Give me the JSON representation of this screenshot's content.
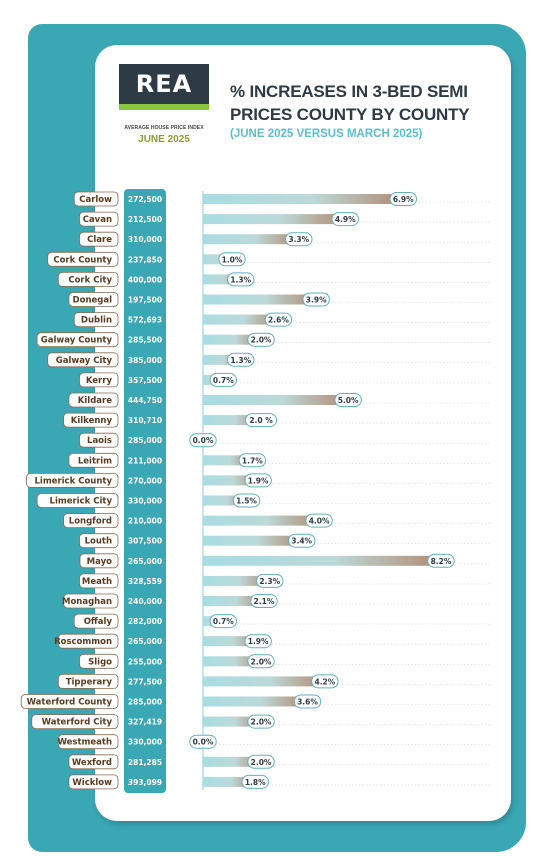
{
  "logo": {
    "brand": "REA",
    "subtitle": "AVERAGE HOUSE PRICE INDEX",
    "date": "JUNE 2025"
  },
  "header": {
    "title_line1": "% INCREASES IN 3-BED SEMI",
    "title_line2": "PRICES COUNTY BY COUNTY",
    "subtitle": "(JUNE 2025 VERSUS MARCH 2025)"
  },
  "colors": {
    "accent_teal": "#3aa7b5",
    "bar_start": "#a8dde3",
    "bar_end": "#b38b72",
    "dark": "#2e3b44",
    "logo_green": "#8cc63f",
    "label_brown": "#5a3b1f"
  },
  "chart_data": {
    "type": "bar",
    "orientation": "horizontal",
    "title": "% INCREASES IN 3-BED SEMI PRICES COUNTY BY COUNTY",
    "subtitle": "(JUNE 2025 VERSUS MARCH 2025)",
    "categories": [
      "Carlow",
      "Cavan",
      "Clare",
      "Cork County",
      "Cork City",
      "Donegal",
      "Dublin",
      "Galway County",
      "Galway City",
      "Kerry",
      "Kildare",
      "Kilkenny",
      "Laois",
      "Leitrim",
      "Limerick County",
      "Limerick City",
      "Longford",
      "Louth",
      "Mayo",
      "Meath",
      "Monaghan",
      "Offaly",
      "Roscommon",
      "Sligo",
      "Tipperary",
      "Waterford County",
      "Waterford City",
      "Westmeath",
      "Wexford",
      "Wicklow"
    ],
    "prices": [
      "272,500",
      "212,500",
      "310,000",
      "237,850",
      "400,000",
      "197,500",
      "572,693",
      "285,500",
      "385,000",
      "357,500",
      "444,750",
      "310,710",
      "285,000",
      "211,000",
      "270,000",
      "330,000",
      "210,000",
      "307,500",
      "265,000",
      "328,559",
      "240,000",
      "282,000",
      "265,000",
      "255,000",
      "277,500",
      "285,000",
      "327,419",
      "330,000",
      "281,285",
      "393,099"
    ],
    "values": [
      6.9,
      4.9,
      3.3,
      1.0,
      1.3,
      3.9,
      2.6,
      2.0,
      1.3,
      0.7,
      5.0,
      2.0,
      0.0,
      1.7,
      1.9,
      1.5,
      4.0,
      3.4,
      8.2,
      2.3,
      2.1,
      0.7,
      1.9,
      2.0,
      4.2,
      3.6,
      2.0,
      0.0,
      2.0,
      1.8
    ],
    "value_labels": [
      "6.9%",
      "4.9%",
      "3.3%",
      "1.0%",
      "1.3%",
      "3.9%",
      "2.6%",
      "2.0%",
      "1.3%",
      "0.7%",
      "5.0%",
      "2.0 %",
      "0.0%",
      "1.7%",
      "1.9%",
      "1.5%",
      "4.0%",
      "3.4%",
      "8.2%",
      "2.3%",
      "2.1%",
      "0.7%",
      "1.9%",
      "2.0%",
      "4.2%",
      "3.6%",
      "2.0%",
      "0.0%",
      "2.0%",
      "1.8%"
    ],
    "xlim": [
      0,
      8.2
    ],
    "grid": "dotted horizontal"
  }
}
